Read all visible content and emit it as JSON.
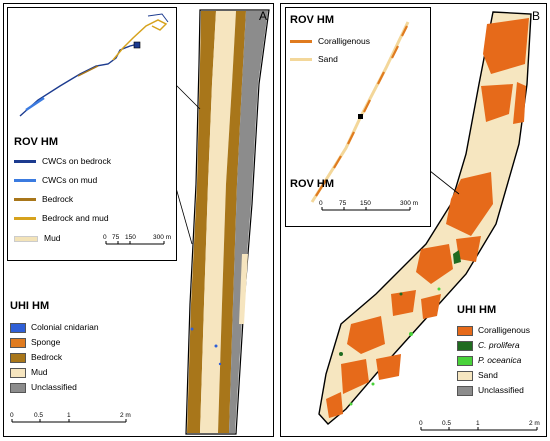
{
  "panel_a": {
    "letter": "A",
    "inset": {
      "title": "ROV HM",
      "legend": [
        {
          "label": "CWCs on bedrock",
          "color": "#1c3b8f"
        },
        {
          "label": "CWCs on mud",
          "color": "#3b7be0"
        },
        {
          "label": "Bedrock",
          "color": "#a8761a"
        },
        {
          "label": "Bedrock and mud",
          "color": "#d6a21d"
        },
        {
          "label": "Mud",
          "color": "#f3e3b8"
        }
      ],
      "scale": {
        "ticks": [
          "0",
          "75",
          "150",
          "300 m"
        ]
      }
    },
    "uhi": {
      "title": "UHI HM",
      "legend": [
        {
          "label": "Colonial cnidarian",
          "color": "#2f5fd6"
        },
        {
          "label": "Sponge",
          "color": "#e07b1f"
        },
        {
          "label": "Bedrock",
          "color": "#a8761a"
        },
        {
          "label": "Mud",
          "color": "#f6e5bf"
        },
        {
          "label": "Unclassified",
          "color": "#8c8c8c"
        }
      ]
    },
    "scale": {
      "ticks": [
        "0",
        "0.5",
        "1",
        "2 m"
      ]
    }
  },
  "panel_b": {
    "letter": "B",
    "inset": {
      "title": "ROV HM",
      "legend": [
        {
          "label": "Coralligenous",
          "color": "#e07b1f"
        },
        {
          "label": "Sand",
          "color": "#f3d79a"
        }
      ],
      "scale": {
        "ticks": [
          "0",
          "75",
          "150",
          "300 m"
        ]
      }
    },
    "uhi": {
      "title": "UHI HM",
      "legend": [
        {
          "label": "Coralligenous",
          "color": "#e66a1a"
        },
        {
          "label": "C. prolifera",
          "color": "#1f6b1f"
        },
        {
          "label": "P. oceanica",
          "color": "#49d23a"
        },
        {
          "label": "Sand",
          "color": "#f6e6c0"
        },
        {
          "label": "Unclassified",
          "color": "#8c8c8c"
        }
      ]
    },
    "scale": {
      "ticks": [
        "0",
        "0.5",
        "1",
        "2 m"
      ]
    }
  }
}
